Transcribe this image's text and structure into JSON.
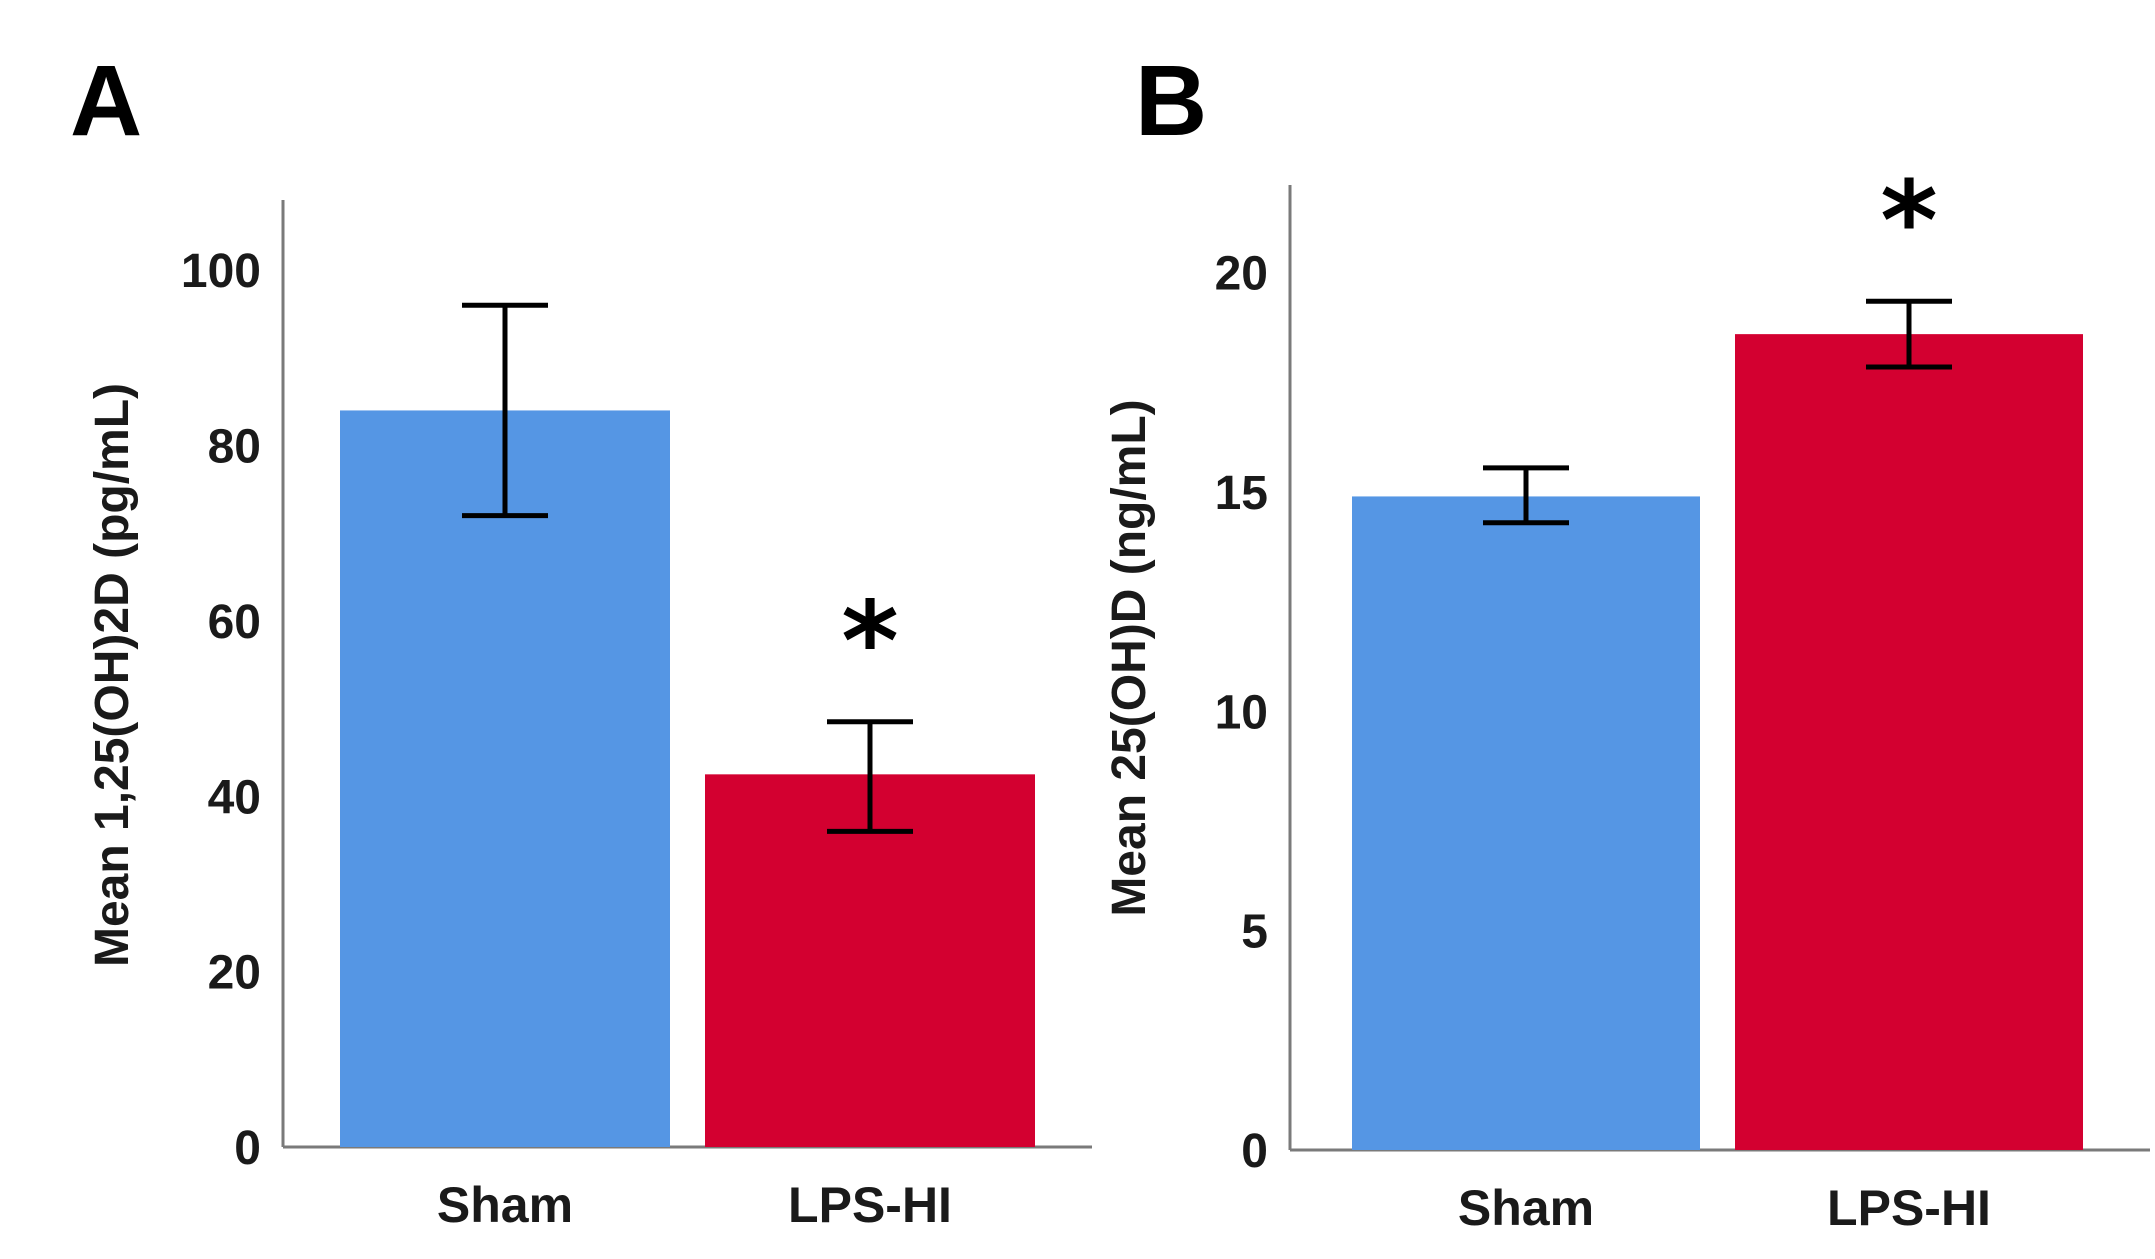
{
  "chart_data": [
    {
      "panel": "A",
      "type": "bar",
      "categories": [
        "Sham",
        "LPS-HI"
      ],
      "values": [
        84,
        42.5
      ],
      "error_low": [
        72,
        36
      ],
      "error_high": [
        96,
        48.5
      ],
      "colors": [
        "#5596E4",
        "#D30030"
      ],
      "ylabel": "Mean 1,25(OH)2D (pg/mL)",
      "xlabel": "",
      "ylim": [
        0,
        108
      ],
      "yticks": [
        0,
        20,
        40,
        60,
        80,
        100
      ],
      "significance": [
        "",
        "*"
      ],
      "grid": false
    },
    {
      "panel": "B",
      "type": "bar",
      "categories": [
        "Sham",
        "LPS-HI"
      ],
      "values": [
        14.9,
        18.6
      ],
      "error_low": [
        14.3,
        17.85
      ],
      "error_high": [
        15.55,
        19.35
      ],
      "colors": [
        "#5596E4",
        "#D30030"
      ],
      "ylabel": "Mean 25(OH)D (ng/mL)",
      "xlabel": "",
      "ylim": [
        0,
        22
      ],
      "yticks": [
        0,
        5,
        10,
        15,
        20
      ],
      "significance": [
        "",
        "*"
      ],
      "grid": false
    }
  ]
}
